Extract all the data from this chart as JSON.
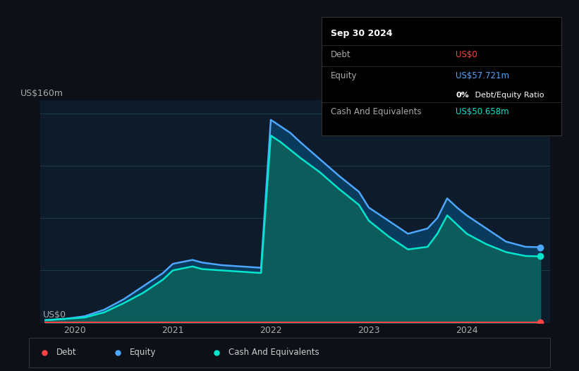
{
  "bg_color": "#0d1117",
  "plot_bg_color": "#0d1b2a",
  "grid_color": "#1e3a4a",
  "ylabel_text": "US$160m",
  "ylabel_zero": "US$0",
  "x_ticks": [
    2020,
    2021,
    2022,
    2023,
    2024
  ],
  "ylim": [
    0,
    170
  ],
  "equity_color": "#4da6ff",
  "cash_color": "#00e5cc",
  "debt_color": "#ff4444",
  "equity_fill": "#0a3a5c",
  "cash_fill": "#0d5c5c",
  "equity_data": {
    "x": [
      2019.7,
      2019.9,
      2020.1,
      2020.3,
      2020.5,
      2020.7,
      2020.9,
      2021.0,
      2021.2,
      2021.3,
      2021.5,
      2021.7,
      2021.9,
      2022.0,
      2022.1,
      2022.2,
      2022.3,
      2022.5,
      2022.7,
      2022.9,
      2023.0,
      2023.2,
      2023.4,
      2023.6,
      2023.7,
      2023.8,
      2023.9,
      2024.0,
      2024.2,
      2024.4,
      2024.6,
      2024.75
    ],
    "y": [
      2,
      3,
      5,
      10,
      18,
      28,
      38,
      45,
      48,
      46,
      44,
      43,
      42,
      155,
      150,
      145,
      138,
      125,
      112,
      100,
      88,
      78,
      68,
      72,
      80,
      95,
      88,
      82,
      72,
      62,
      58,
      57.7
    ]
  },
  "cash_data": {
    "x": [
      2019.7,
      2019.9,
      2020.1,
      2020.3,
      2020.5,
      2020.7,
      2020.9,
      2021.0,
      2021.2,
      2021.3,
      2021.5,
      2021.7,
      2021.9,
      2022.0,
      2022.1,
      2022.2,
      2022.3,
      2022.5,
      2022.7,
      2022.9,
      2023.0,
      2023.2,
      2023.4,
      2023.6,
      2023.7,
      2023.8,
      2023.9,
      2024.0,
      2024.2,
      2024.4,
      2024.6,
      2024.75
    ],
    "y": [
      2,
      3,
      4,
      8,
      15,
      23,
      33,
      40,
      43,
      41,
      40,
      39,
      38,
      143,
      138,
      132,
      126,
      115,
      102,
      90,
      78,
      66,
      56,
      58,
      68,
      82,
      75,
      68,
      60,
      54,
      51,
      50.7
    ]
  },
  "debt_data": {
    "x": [
      2019.7,
      2024.75
    ],
    "y": [
      0.5,
      0.5
    ]
  },
  "tooltip": {
    "title": "Sep 30 2024",
    "debt_label": "Debt",
    "debt_value": "US$0",
    "equity_label": "Equity",
    "equity_value": "US$57.721m",
    "ratio_bold": "0%",
    "ratio_rest": " Debt/Equity Ratio",
    "cash_label": "Cash And Equivalents",
    "cash_value": "US$50.658m",
    "box_color": "#000000",
    "title_color": "#ffffff",
    "label_color": "#aaaaaa",
    "debt_val_color": "#ff4444",
    "equity_val_color": "#4da6ff",
    "ratio_color": "#ffffff",
    "cash_val_color": "#00e5cc",
    "sep_color": "#2a2a2a"
  },
  "legend": {
    "debt_label": "Debt",
    "equity_label": "Equity",
    "cash_label": "Cash And Equivalents"
  }
}
